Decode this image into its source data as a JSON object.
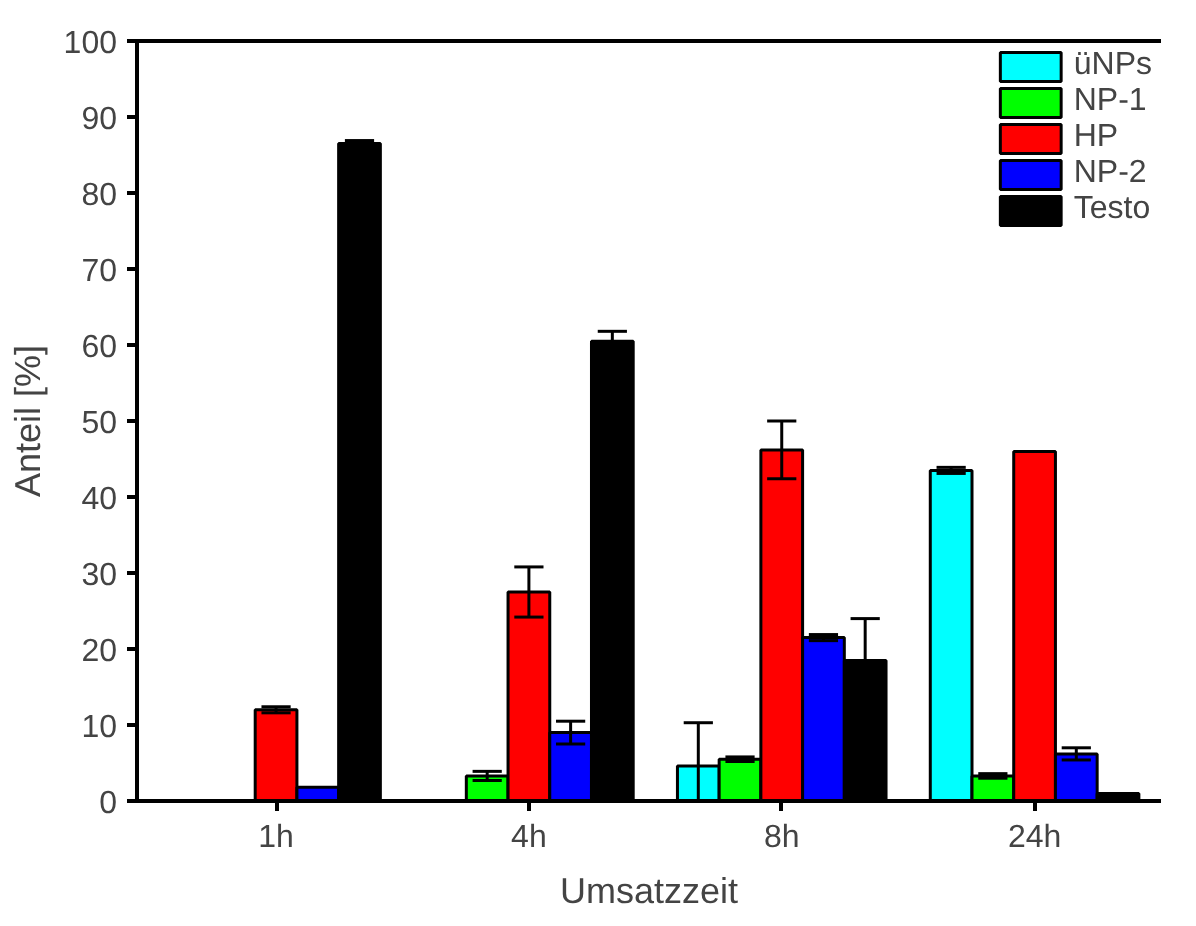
{
  "chart_data": {
    "type": "bar",
    "xlabel": "Umsatzzeit",
    "ylabel": "Anteil [%]",
    "categories": [
      "1h",
      "4h",
      "8h",
      "24h"
    ],
    "series": [
      {
        "name": "üNPs",
        "color": "#00ffff",
        "values": [
          null,
          null,
          4.6,
          43.5
        ],
        "errors": [
          null,
          null,
          5.7,
          0.4
        ]
      },
      {
        "name": "NP-1",
        "color": "#00ff00",
        "values": [
          null,
          3.3,
          5.5,
          3.3
        ],
        "errors": [
          null,
          0.6,
          0.3,
          0.3
        ]
      },
      {
        "name": "HP",
        "color": "#ff0000",
        "values": [
          12,
          27.5,
          46.2,
          46
        ],
        "errors": [
          0.4,
          3.3,
          3.8,
          null
        ]
      },
      {
        "name": "NP-2",
        "color": "#0000ff",
        "values": [
          1.8,
          9,
          21.5,
          6.2
        ],
        "errors": [
          null,
          1.5,
          0.4,
          0.8
        ]
      },
      {
        "name": "Testo",
        "color": "#000000",
        "values": [
          86.5,
          60.5,
          18.5,
          1
        ],
        "errors": [
          0.4,
          1.3,
          5.5,
          null
        ]
      }
    ],
    "ylim": [
      0,
      100
    ],
    "yticks": [
      0,
      10,
      20,
      30,
      40,
      50,
      60,
      70,
      80,
      90,
      100
    ],
    "grid": false,
    "legend": "top right"
  }
}
